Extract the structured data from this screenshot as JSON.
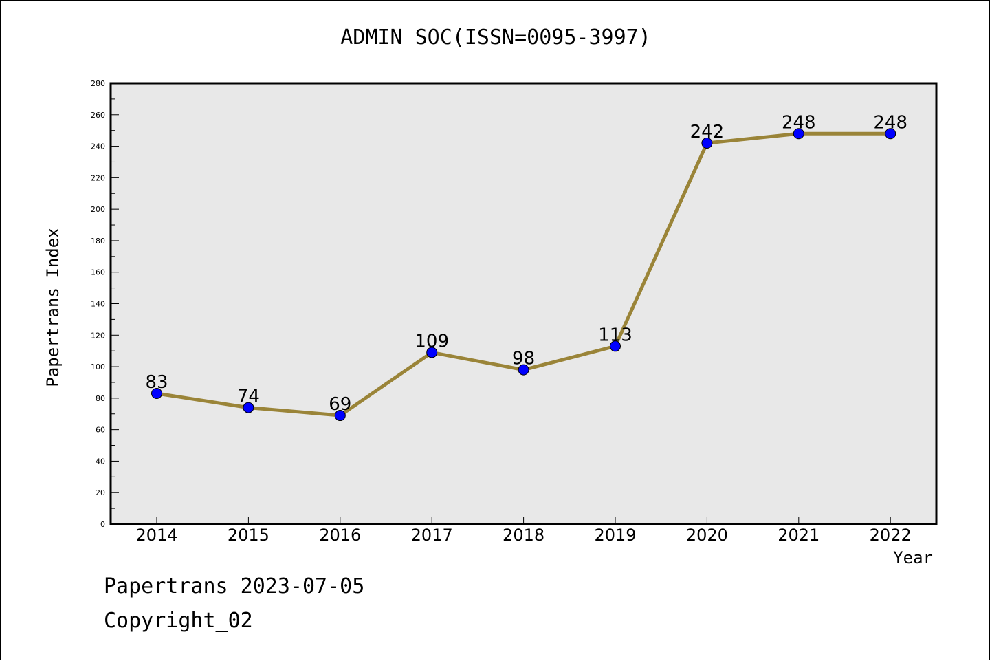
{
  "title": "ADMIN SOC(ISSN=0095-3997)",
  "footer": {
    "line1": "Papertrans 2023-07-05",
    "line2": "Copyright_02"
  },
  "chart_data": {
    "type": "line",
    "title": "ADMIN SOC(ISSN=0095-3997)",
    "xlabel": "Year",
    "ylabel": "Papertrans Index",
    "categories": [
      "2014",
      "2015",
      "2016",
      "2017",
      "2018",
      "2019",
      "2020",
      "2021",
      "2022"
    ],
    "series": [
      {
        "values": [
          83,
          74,
          69,
          109,
          98,
          113,
          242,
          248,
          248
        ]
      }
    ],
    "ylim": [
      0,
      280
    ],
    "yticks": [
      0,
      20,
      40,
      60,
      80,
      100,
      120,
      140,
      160,
      180,
      200,
      220,
      240,
      260,
      280
    ],
    "grid": false,
    "line_color": "#9a8438",
    "marker_color": "#0000ff",
    "plot_background": "#e8e8e8"
  }
}
